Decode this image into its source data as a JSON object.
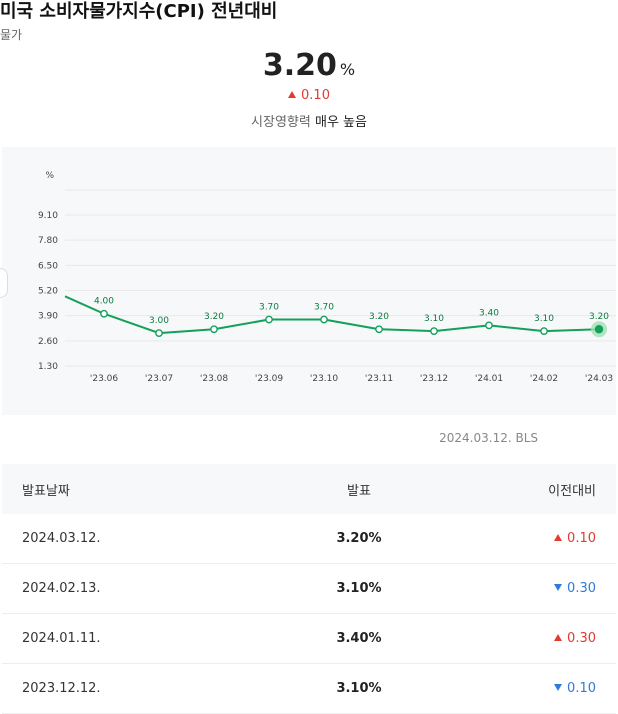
{
  "header": {
    "title": "미국 소비자물가지수(CPI) 전년대비",
    "category": "물가"
  },
  "current": {
    "value": "3.20",
    "unit": "%",
    "change": "0.10",
    "change_direction": "up",
    "impact_label": "시장영향력",
    "impact_level": "매우 높음"
  },
  "colors": {
    "line": "#12a05a",
    "up": "#e03c31",
    "down": "#2f7bd8"
  },
  "chart_data": {
    "type": "line",
    "ylabel": "%",
    "yticks": [
      "9.10",
      "7.80",
      "6.50",
      "5.20",
      "3.90",
      "2.60",
      "1.30"
    ],
    "ylim": [
      1.3,
      9.1
    ],
    "categories": [
      "'23.06",
      "'23.07",
      "'23.08",
      "'23.09",
      "'23.10",
      "'23.11",
      "'23.12",
      "'24.01",
      "'24.02",
      "'24.03"
    ],
    "series": [
      {
        "values": [
          4.0,
          3.0,
          3.2,
          3.7,
          3.7,
          3.2,
          3.1,
          3.4,
          3.1,
          3.2
        ],
        "labels": [
          "4.00",
          "3.00",
          "3.20",
          "3.70",
          "3.70",
          "3.20",
          "3.10",
          "3.40",
          "3.10",
          "3.20"
        ]
      }
    ],
    "prior_value": 4.9,
    "grid": true,
    "legend": "none"
  },
  "source": "2024.03.12. BLS",
  "table": {
    "headers": [
      "발표날짜",
      "발표",
      "이전대비"
    ],
    "rows": [
      {
        "date": "2024.03.12.",
        "value": "3.20%",
        "change": "0.10",
        "dir": "up"
      },
      {
        "date": "2024.02.13.",
        "value": "3.10%",
        "change": "0.30",
        "dir": "down"
      },
      {
        "date": "2024.01.11.",
        "value": "3.40%",
        "change": "0.30",
        "dir": "up"
      },
      {
        "date": "2023.12.12.",
        "value": "3.10%",
        "change": "0.10",
        "dir": "down"
      }
    ]
  }
}
